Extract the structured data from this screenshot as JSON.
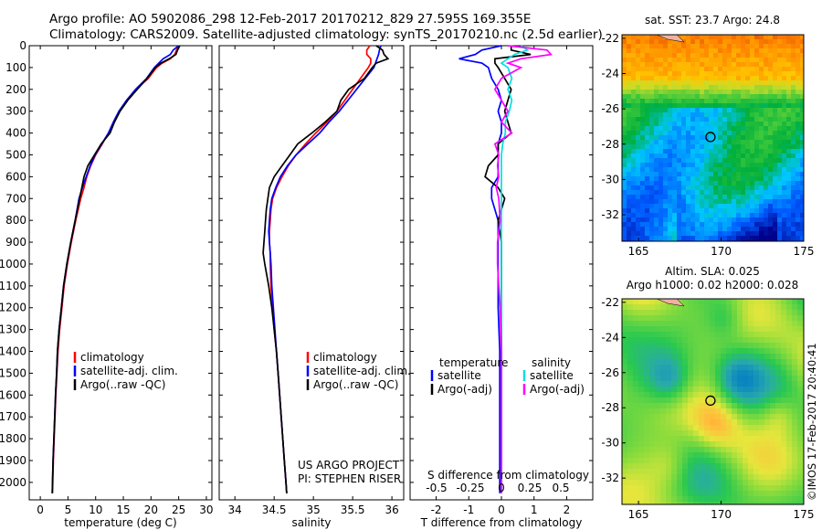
{
  "header": {
    "line1": "Argo profile: AO 5902086_298 12-Feb-2017 20170212_829 27.595S 169.355E",
    "line2": "Climatology: CARS2009. Satellite-adjusted climatology: synTS_20170210.nc (2.5d earlier)"
  },
  "colors": {
    "climatology": "#ff0000",
    "satellite": "#0000ff",
    "argo": "#000000",
    "argo_adj": "#ff00ff",
    "sat_salinity": "#00e0e0"
  },
  "chart_data": [
    {
      "type": "line",
      "panel": "temperature",
      "xlabel": "temperature (deg C)",
      "xlim": [
        -2,
        31
      ],
      "ylim": [
        2080,
        0
      ],
      "xticks": [
        "0",
        "5",
        "10",
        "15",
        "20",
        "25",
        "30"
      ],
      "yticks": [
        "0",
        "100",
        "200",
        "300",
        "400",
        "500",
        "600",
        "700",
        "800",
        "900",
        "1000",
        "1100",
        "1200",
        "1300",
        "1400",
        "1500",
        "1600",
        "1700",
        "1800",
        "1900",
        "2000"
      ],
      "depth": [
        0,
        20,
        40,
        60,
        80,
        100,
        150,
        200,
        250,
        300,
        350,
        400,
        450,
        500,
        550,
        600,
        650,
        700,
        800,
        900,
        1000,
        1100,
        1200,
        1300,
        1400,
        1500,
        1600,
        1700,
        1800,
        1900,
        2000,
        2050
      ],
      "series": [
        {
          "name": "climatology",
          "values": [
            25,
            24.6,
            24.3,
            23.5,
            22,
            21,
            19.5,
            17.3,
            15.6,
            14.3,
            13.3,
            12.3,
            11.2,
            10,
            9.1,
            8.4,
            7.9,
            7.3,
            6.4,
            5.6,
            4.9,
            4.3,
            3.9,
            3.5,
            3.2,
            3,
            2.8,
            2.65,
            2.5,
            2.35,
            2.25,
            2.2
          ]
        },
        {
          "name": "satellite-adj. clim.",
          "values": [
            25,
            24,
            23.5,
            22.2,
            21.4,
            20.6,
            19.2,
            17.2,
            15.6,
            14.2,
            13.2,
            12.3,
            11.1,
            9.9,
            9,
            8.3,
            7.6,
            7,
            6.3,
            5.5,
            4.8,
            4.2,
            3.8,
            3.4,
            3.1,
            2.95,
            2.75,
            2.6,
            2.45,
            2.3,
            2.2,
            2.15
          ]
        },
        {
          "name": "Argo(..raw -QC)",
          "values": [
            25.2,
            24.8,
            24.5,
            23.3,
            21.8,
            20.8,
            19.3,
            17.5,
            15.8,
            14.4,
            13.4,
            12.6,
            11,
            9.8,
            8.6,
            7.9,
            7.5,
            7.1,
            6.3,
            5.5,
            4.8,
            4.2,
            3.8,
            3.4,
            3.1,
            2.95,
            2.75,
            2.6,
            2.45,
            2.3,
            2.2,
            2.15
          ]
        }
      ],
      "legend": [
        "climatology",
        "satellite-adj. clim.",
        "Argo(..raw -QC)"
      ]
    },
    {
      "type": "line",
      "panel": "salinity",
      "xlabel": "salinity",
      "xlim": [
        33.8,
        36.15
      ],
      "ylim": [
        2080,
        0
      ],
      "xticks": [
        "34",
        "34.5",
        "35",
        "35.5",
        "36"
      ],
      "depth": [
        0,
        20,
        40,
        60,
        80,
        100,
        150,
        200,
        250,
        300,
        350,
        400,
        450,
        500,
        550,
        600,
        650,
        700,
        750,
        800,
        850,
        900,
        950,
        1000,
        1100,
        1200,
        1300,
        1400,
        1500,
        1600,
        1700,
        1800,
        1900,
        2000,
        2050
      ],
      "series": [
        {
          "name": "climatology",
          "values": [
            35.72,
            35.68,
            35.68,
            35.73,
            35.73,
            35.7,
            35.6,
            35.5,
            35.4,
            35.3,
            35.17,
            35.03,
            34.9,
            34.78,
            34.68,
            34.6,
            34.53,
            34.48,
            34.46,
            34.45,
            34.44,
            34.44,
            34.45,
            34.45,
            34.46,
            34.48,
            34.5,
            34.53,
            34.55,
            34.57,
            34.59,
            34.61,
            34.63,
            34.65,
            34.66
          ]
        },
        {
          "name": "satellite-adj. clim.",
          "values": [
            35.86,
            35.84,
            35.83,
            35.81,
            35.79,
            35.77,
            35.66,
            35.55,
            35.44,
            35.33,
            35.2,
            35.08,
            34.93,
            34.78,
            34.67,
            34.58,
            34.52,
            34.47,
            34.45,
            34.44,
            34.43,
            34.44,
            34.45,
            34.46,
            34.47,
            34.49,
            34.51,
            34.53,
            34.55,
            34.57,
            34.59,
            34.61,
            34.63,
            34.65,
            34.66
          ]
        },
        {
          "name": "Argo(..raw -QC)",
          "values": [
            35.8,
            35.88,
            35.9,
            35.95,
            35.8,
            35.75,
            35.65,
            35.45,
            35.35,
            35.3,
            35.15,
            34.98,
            34.8,
            34.7,
            34.6,
            34.5,
            34.44,
            34.42,
            34.4,
            34.39,
            34.38,
            34.37,
            34.36,
            34.38,
            34.43,
            34.47,
            34.5,
            34.53,
            34.55,
            34.57,
            34.59,
            34.61,
            34.63,
            34.65,
            34.66
          ]
        }
      ],
      "legend": [
        "climatology",
        "satellite-adj. clim.",
        "Argo(..raw -QC)"
      ],
      "credit_1": "US ARGO PROJECT",
      "credit_2": "PI: STEPHEN RISER"
    },
    {
      "type": "line",
      "panel": "differences",
      "xlabel": "T difference from climatology",
      "top_label": "S difference from climatology",
      "xlim": [
        -2.8,
        2.8
      ],
      "ylim": [
        2080,
        0
      ],
      "xticks": [
        "-2",
        "-1",
        "0",
        "1",
        "2"
      ],
      "top_ticks": [
        "-0.5",
        "-0.25",
        "0",
        "0.25",
        "0.5"
      ],
      "depth": [
        0,
        20,
        40,
        60,
        80,
        100,
        150,
        200,
        250,
        300,
        350,
        400,
        450,
        500,
        550,
        600,
        650,
        700,
        800,
        900,
        1000,
        1100,
        1200,
        1400,
        1600,
        1800,
        2000,
        2050
      ],
      "series": [
        {
          "name": "temperature satellite",
          "values": [
            0,
            -0.6,
            -0.8,
            -1.3,
            -0.6,
            -0.4,
            -0.3,
            -0.1,
            0,
            -0.1,
            0,
            0,
            -0.1,
            -0.1,
            -0.1,
            -0.1,
            -0.3,
            -0.3,
            -0.1,
            -0.1,
            -0.1,
            -0.1,
            -0.1,
            -0.05,
            -0.05,
            -0.05,
            -0.05,
            -0.05
          ]
        },
        {
          "name": "temperature Argo(-adj)",
          "values": [
            0.3,
            0.3,
            0.9,
            -0.2,
            -0.2,
            -0.1,
            0.1,
            0.3,
            0.2,
            0.1,
            0.2,
            0.3,
            -0.1,
            -0.1,
            -0.4,
            -0.5,
            -0.1,
            0.1,
            -0.1,
            0,
            0,
            0,
            0,
            0,
            0,
            0,
            0,
            0
          ]
        },
        {
          "name": "salinity satellite",
          "values": [
            0.15,
            0.2,
            0.1,
            0.05,
            0,
            0.05,
            0.08,
            0.05,
            0.08,
            0.06,
            0.03,
            0.03,
            0.01,
            0,
            0,
            0,
            0,
            0,
            0,
            0,
            0,
            0,
            0,
            0,
            0,
            0,
            0,
            0
          ]
        },
        {
          "name": "salinity Argo(-adj)",
          "values": [
            0.05,
            0.35,
            0.38,
            0.15,
            0.05,
            0.15,
            0,
            -0.05,
            0,
            0.05,
            0,
            0.08,
            -0.05,
            -0.02,
            -0.03,
            -0.02,
            -0.04,
            -0.02,
            -0.01,
            -0.03,
            -0.03,
            -0.02,
            -0.01,
            0,
            0,
            0,
            0,
            0
          ]
        }
      ],
      "legend_temp_head": "temperature",
      "legend_sal_head": "salinity",
      "legend_t1": "satellite",
      "legend_t2": "Argo(-adj)",
      "legend_s1": "satellite",
      "legend_s2": "Argo(-adj)"
    },
    {
      "type": "heatmap",
      "panel": "sst_map",
      "title": "sat. SST: 23.7 Argo: 24.8",
      "xlim": [
        164,
        175
      ],
      "ylim": [
        -33.5,
        -21.8
      ],
      "xticks": [
        "165",
        "170",
        "175"
      ],
      "yticks": [
        "-22",
        "-24",
        "-26",
        "-28",
        "-30",
        "-32"
      ],
      "argo_position": [
        169.355,
        -27.595
      ]
    },
    {
      "type": "heatmap",
      "panel": "sla_map",
      "title_1": "Altim. SLA: 0.025",
      "title_2": "Argo h1000: 0.02 h2000: 0.028",
      "xlim": [
        164,
        175
      ],
      "ylim": [
        -33.5,
        -21.8
      ],
      "xticks": [
        "165",
        "170",
        "175"
      ],
      "yticks": [
        "-22",
        "-24",
        "-26",
        "-28",
        "-30",
        "-32"
      ],
      "argo_position": [
        169.355,
        -27.595
      ]
    }
  ],
  "stamp": "©IMOS 17-Feb-2017 20:40:41"
}
